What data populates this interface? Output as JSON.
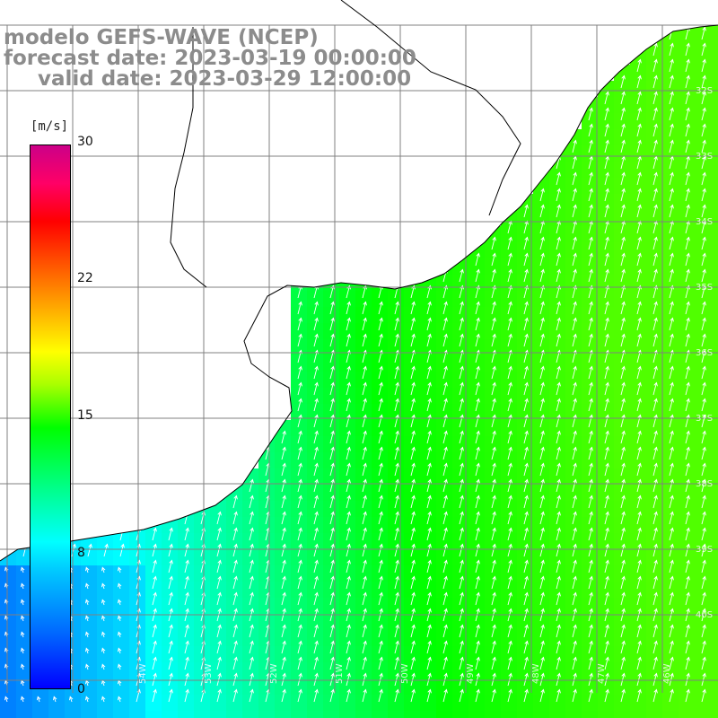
{
  "title": {
    "line1": "modelo GEFS-WAVE (NCEP)",
    "line2": "forecast date: 2023-03-19 00:00:00",
    "line3": "valid date: 2023-03-29 12:00:00"
  },
  "colorbar": {
    "unit": "[m/s]",
    "ticks": [
      "30",
      "22",
      "15",
      "8",
      "0"
    ],
    "colors": [
      "#0000ff",
      "#00ccff",
      "#00ffff",
      "#00ff00",
      "#ffff00",
      "#ff0000",
      "#cc0088"
    ]
  },
  "map": {
    "land_color": "#ffffff",
    "grid_color": "#808080",
    "coast_color": "#000000",
    "arrow_color": "#ffffff",
    "lat_labels": [
      "32S",
      "33S",
      "34S",
      "35S",
      "36S",
      "37S",
      "38S",
      "39S",
      "40S"
    ],
    "lon_labels": [
      "54W",
      "53W",
      "52W",
      "51W",
      "50W",
      "49W",
      "48W",
      "47W",
      "46W"
    ]
  }
}
